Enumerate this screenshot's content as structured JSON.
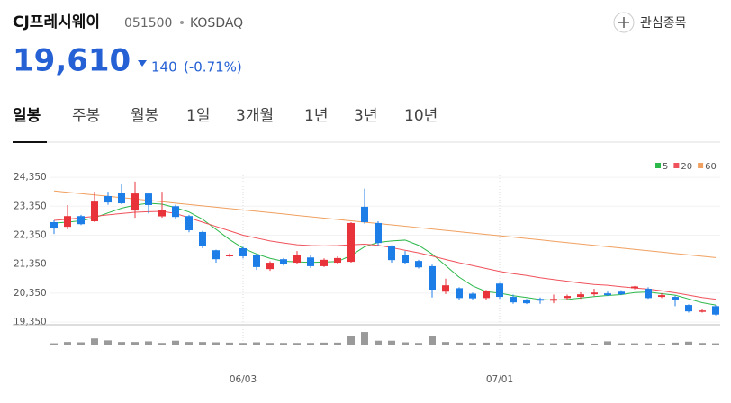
{
  "header": {
    "name": "CJ프레시웨이",
    "code": "051500",
    "market": "KOSDAQ",
    "watch_button": "관심종목",
    "price": "19,610",
    "change": "140",
    "change_pct": "(-0.71%)"
  },
  "tabs": [
    "일봉",
    "주봉",
    "월봉",
    "1일",
    "3개월",
    "1년",
    "3년",
    "10년"
  ],
  "chart_data": {
    "type": "candlestick",
    "categories": [
      null,
      null,
      null,
      null,
      null,
      null,
      null,
      null,
      null,
      null,
      null,
      null,
      null,
      null,
      "06/03",
      null,
      null,
      null,
      null,
      null,
      null,
      null,
      null,
      null,
      null,
      null,
      null,
      null,
      null,
      null,
      null,
      null,
      null,
      "07/01",
      null,
      null,
      null,
      null,
      null,
      null,
      null,
      null,
      null,
      null,
      null,
      null,
      null,
      null,
      null,
      null
    ],
    "open": [
      22800,
      22640,
      23010,
      22830,
      23700,
      23820,
      23200,
      23790,
      23000,
      23350,
      23010,
      22460,
      21830,
      21620,
      21900,
      21680,
      21180,
      21520,
      21400,
      21580,
      21280,
      21400,
      21430,
      23330,
      22770,
      21960,
      21680,
      21460,
      21280,
      20400,
      20520,
      20330,
      20180,
      20680,
      20220,
      20130,
      20150,
      20090,
      20180,
      20220,
      20310,
      20340,
      20400,
      20520,
      20500,
      20220,
      20220,
      19940,
      19720,
      19900
    ],
    "high": [
      22860,
      23390,
      23050,
      23850,
      23850,
      24100,
      24200,
      23800,
      23850,
      23400,
      23050,
      22500,
      21850,
      21720,
      21950,
      21720,
      21450,
      21560,
      21800,
      21650,
      21550,
      21620,
      22800,
      23960,
      22830,
      22000,
      21800,
      21500,
      21330,
      20850,
      20550,
      20370,
      20460,
      20700,
      20300,
      20150,
      20200,
      20300,
      20300,
      20380,
      20500,
      20400,
      20450,
      20600,
      20550,
      20350,
      20260,
      19960,
      19800,
      19930
    ],
    "low": [
      22390,
      22550,
      22700,
      22800,
      23400,
      23420,
      22950,
      23100,
      22950,
      22900,
      22450,
      21900,
      21400,
      21600,
      21550,
      21150,
      21120,
      21300,
      21350,
      21220,
      21250,
      21350,
      21400,
      22750,
      22000,
      21400,
      21350,
      21200,
      20200,
      20320,
      20100,
      20120,
      20100,
      20150,
      19980,
      19970,
      19980,
      20000,
      20100,
      20150,
      20250,
      20250,
      20280,
      20480,
      20150,
      20180,
      19900,
      19680,
      19680,
      19580
    ],
    "close": [
      22580,
      23010,
      22730,
      23510,
      23480,
      23450,
      23790,
      23390,
      23230,
      22980,
      22520,
      21990,
      21520,
      21680,
      21620,
      21250,
      21400,
      21340,
      21650,
      21280,
      21500,
      21560,
      22770,
      22800,
      22080,
      21490,
      21400,
      21240,
      20470,
      20620,
      20180,
      20170,
      20440,
      20220,
      20030,
      20000,
      20090,
      20150,
      20250,
      20310,
      20370,
      20280,
      20310,
      20580,
      20180,
      20280,
      20130,
      19720,
      19750,
      19610
    ],
    "up_color": "#e9333b",
    "down_color": "#1e7ee8",
    "moving_averages": [
      {
        "name": "5",
        "color": "#2db84a",
        "values": [
          22770,
          22800,
          22850,
          22950,
          23120,
          23280,
          23390,
          23450,
          23420,
          23300,
          23150,
          22900,
          22550,
          22200,
          21900,
          21700,
          21550,
          21450,
          21430,
          21410,
          21420,
          21440,
          21650,
          21950,
          22100,
          22150,
          22180,
          22000,
          21700,
          21300,
          20900,
          20600,
          20400,
          20350,
          20260,
          20200,
          20130,
          20110,
          20130,
          20180,
          20230,
          20270,
          20300,
          20370,
          20390,
          20330,
          20280,
          20150,
          20020,
          19940
        ]
      },
      {
        "name": "20",
        "color": "#f0525b",
        "values": [
          22860,
          22900,
          22950,
          23000,
          23050,
          23100,
          23140,
          23160,
          23170,
          23100,
          22950,
          22800,
          22650,
          22500,
          22350,
          22250,
          22150,
          22080,
          22020,
          21990,
          21980,
          21990,
          22020,
          22040,
          22000,
          21920,
          21830,
          21740,
          21630,
          21510,
          21400,
          21300,
          21200,
          21100,
          21020,
          20960,
          20880,
          20820,
          20760,
          20700,
          20650,
          20620,
          20570,
          20530,
          20490,
          20430,
          20360,
          20280,
          20200,
          20140
        ]
      },
      {
        "name": "60",
        "color": "#f0a060",
        "values": [
          23880,
          23833,
          23786,
          23739,
          23692,
          23645,
          23598,
          23551,
          23504,
          23457,
          23410,
          23363,
          23316,
          23269,
          23222,
          23175,
          23128,
          23081,
          23034,
          22987,
          22940,
          22893,
          22846,
          22799,
          22752,
          22705,
          22658,
          22611,
          22564,
          22517,
          22470,
          22423,
          22376,
          22329,
          22282,
          22235,
          22188,
          22141,
          22094,
          22047,
          22000,
          21953,
          21906,
          21859,
          21812,
          21765,
          21718,
          21671,
          21624,
          21577
        ]
      }
    ],
    "volume": {
      "color": "#9a9a9a",
      "ylim": [
        0,
        42
      ],
      "values": [
        4,
        8,
        7,
        19,
        13,
        8,
        8,
        10,
        5,
        12,
        8,
        8,
        7,
        6,
        5,
        7,
        5,
        5,
        5,
        5,
        6,
        6,
        26,
        39,
        12,
        12,
        7,
        5,
        26,
        8,
        6,
        5,
        6,
        6,
        5,
        4,
        4,
        4,
        5,
        6,
        3,
        10,
        4,
        4,
        4,
        3,
        6,
        9,
        5,
        4
      ]
    },
    "ylim": [
      19290,
      24880
    ],
    "yticks": [
      {
        "value": 24350,
        "label": "24,350"
      },
      {
        "value": 23350,
        "label": "23,350"
      },
      {
        "value": 22350,
        "label": "22,350"
      },
      {
        "value": 21350,
        "label": "21,350"
      },
      {
        "value": 20350,
        "label": "20,350"
      },
      {
        "value": 19350,
        "label": "19,350"
      }
    ],
    "grid": true
  }
}
